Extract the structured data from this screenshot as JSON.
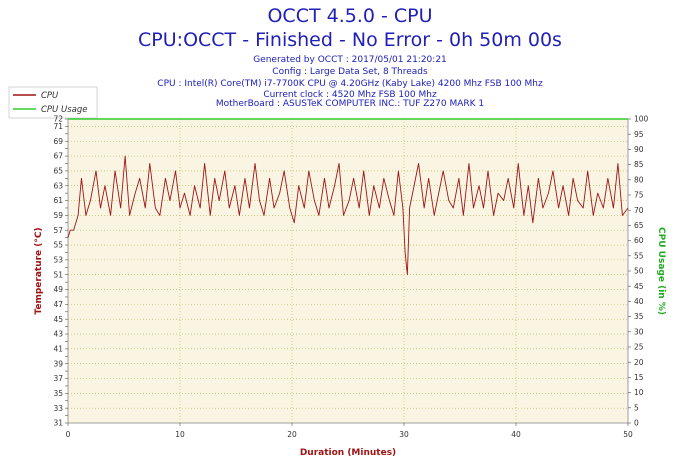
{
  "header": {
    "title": "OCCT 4.5.0 - CPU",
    "subtitle": "CPU:OCCT - Finished - No Error - 0h 50m 00s",
    "info_lines": [
      "Generated by OCCT : 2017/05/01 21:20:21",
      "Config : Large Data Set, 8 Threads",
      "CPU : Intel(R) Core(TM) i7-7700K CPU @ 4.20GHz (Kaby Lake) 4200 Mhz FSB 100 Mhz",
      "Current clock : 4520 Mhz FSB 100 Mhz",
      "MotherBoard : ASUSTeK COMPUTER INC.: TUF Z270 MARK 1"
    ]
  },
  "legend": [
    {
      "label": "CPU",
      "color": "#a01414"
    },
    {
      "label": "CPU Usage",
      "color": "#33cc33"
    }
  ],
  "colors": {
    "plot_background": "#faf5e3",
    "grid": "#b8b050",
    "temperature": "#a01414",
    "usage": "#33cc33",
    "title": "#2020b8"
  },
  "chart_data": {
    "type": "line",
    "xlabel": "Duration (Minutes)",
    "ylabel": "Temperature (°C)",
    "y2label": "CPU Usage (in %)",
    "xlim": [
      0,
      50
    ],
    "ylim": [
      31,
      72
    ],
    "y2lim": [
      0,
      100
    ],
    "x_ticks": [
      "0",
      "10",
      "20",
      "30",
      "40",
      "50"
    ],
    "y_ticks": [
      "31",
      "32",
      "33",
      "34",
      "35",
      "36",
      "37",
      "38",
      "39",
      "40",
      "41",
      "42",
      "43",
      "44",
      "45",
      "46",
      "47",
      "48",
      "49",
      "50",
      "51",
      "52",
      "53",
      "54",
      "55",
      "56",
      "57",
      "58",
      "59",
      "60",
      "61",
      "62",
      "63",
      "64",
      "65",
      "66",
      "67",
      "68",
      "69",
      "70",
      "71",
      "72"
    ],
    "y_tick_labels": [
      "31",
      "",
      "33",
      "",
      "35",
      "",
      "37",
      "",
      "39",
      "",
      "41",
      "",
      "43",
      "",
      "45",
      "",
      "47",
      "",
      "49",
      "",
      "51",
      "",
      "53",
      "",
      "55",
      "",
      "57",
      "",
      "59",
      "",
      "61",
      "",
      "63",
      "",
      "65",
      "",
      "67",
      "",
      "69",
      "",
      "71",
      "72"
    ],
    "y2_ticks": [
      "0",
      "5",
      "10",
      "15",
      "20",
      "25",
      "30",
      "35",
      "40",
      "45",
      "50",
      "55",
      "60",
      "65",
      "70",
      "75",
      "80",
      "85",
      "90",
      "95",
      "100"
    ],
    "grid": true,
    "legend_position": "top-left",
    "series": [
      {
        "name": "CPU",
        "axis": "left",
        "x": [
          0,
          0.2,
          0.5,
          0.9,
          1.2,
          1.6,
          2.0,
          2.5,
          2.9,
          3.3,
          3.8,
          4.2,
          4.7,
          5.1,
          5.5,
          6.0,
          6.4,
          6.9,
          7.3,
          7.8,
          8.2,
          8.7,
          9.1,
          9.6,
          10.0,
          10.4,
          10.9,
          11.3,
          11.8,
          12.2,
          12.7,
          13.1,
          13.5,
          14.0,
          14.4,
          14.9,
          15.3,
          15.8,
          16.2,
          16.7,
          17.1,
          17.5,
          18.0,
          18.4,
          18.9,
          19.3,
          19.8,
          20.2,
          20.6,
          21.1,
          21.5,
          22.0,
          22.4,
          22.9,
          23.3,
          23.8,
          24.2,
          24.6,
          25.1,
          25.5,
          26.0,
          26.4,
          26.9,
          27.3,
          27.8,
          28.2,
          28.7,
          29.1,
          29.5,
          29.9,
          30.1,
          30.3,
          30.5,
          30.9,
          31.3,
          31.8,
          32.2,
          32.7,
          33.1,
          33.5,
          34.0,
          34.4,
          34.9,
          35.3,
          35.8,
          36.2,
          36.7,
          37.1,
          37.5,
          38.0,
          38.4,
          38.9,
          39.3,
          39.8,
          40.2,
          40.7,
          41.1,
          41.5,
          42.0,
          42.4,
          42.9,
          43.3,
          43.8,
          44.2,
          44.7,
          45.1,
          45.5,
          46.0,
          46.4,
          46.9,
          47.3,
          47.8,
          48.2,
          48.7,
          49.1,
          49.5,
          50.0
        ],
        "y": [
          56,
          57,
          57,
          59,
          64,
          59,
          61,
          65,
          60,
          63,
          59,
          65,
          60,
          67,
          59,
          62,
          64,
          60,
          66,
          60,
          59,
          64,
          61,
          65,
          60,
          62,
          59,
          63,
          60,
          66,
          59,
          64,
          61,
          65,
          60,
          63,
          59,
          64,
          60,
          66,
          61,
          59,
          64,
          60,
          62,
          65,
          60,
          58,
          63,
          60,
          65,
          61,
          59,
          64,
          60,
          63,
          66,
          59,
          61,
          64,
          60,
          65,
          59,
          63,
          60,
          64,
          61,
          59,
          65,
          60,
          54,
          51,
          60,
          63,
          66,
          60,
          64,
          59,
          62,
          65,
          61,
          60,
          64,
          59,
          66,
          60,
          63,
          60,
          65,
          59,
          62,
          61,
          64,
          60,
          66,
          59,
          63,
          58,
          64,
          60,
          62,
          65,
          60,
          63,
          59,
          64,
          61,
          60,
          65,
          59,
          62,
          60,
          64,
          60,
          66,
          59,
          60
        ]
      },
      {
        "name": "CPU Usage",
        "axis": "right",
        "x": [
          0,
          50
        ],
        "y": [
          100,
          100
        ]
      }
    ]
  }
}
